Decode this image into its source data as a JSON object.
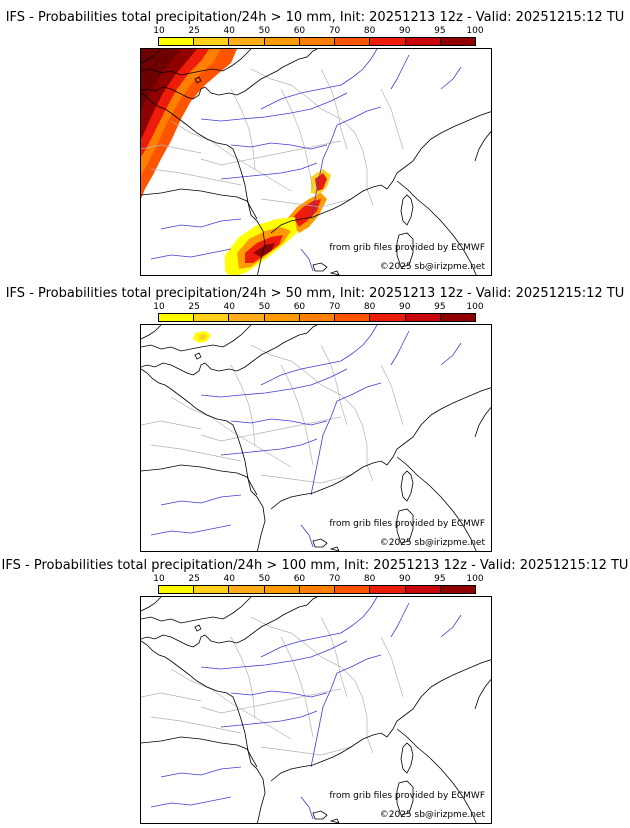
{
  "legend_ticks": [
    "10",
    "25",
    "40",
    "50",
    "60",
    "70",
    "80",
    "90",
    "95",
    "100"
  ],
  "legend_colors": [
    "#ffff00",
    "#ffd11a",
    "#ffae1a",
    "#ff9a00",
    "#ff8000",
    "#ff5400",
    "#ee1c0a",
    "#c8070a",
    "#8f0000",
    "#6e0000"
  ],
  "map_colors": {
    "coast": "#000000",
    "rivers": "#3f3fd4",
    "borders": "#b4b4b4"
  },
  "panels": [
    {
      "title": "IFS - Probabilities total precipitation/24h > 10 mm, Init: 20251213 12z - Valid: 20251215:12 TU",
      "credit_grib": "from grib files provided by ECMWF",
      "credit_copy": "©2025 sb@irizpme.net",
      "prob_areas": [
        "atlantic-northwest",
        "southern-alps",
        "gulf-of-lion"
      ]
    },
    {
      "title": "IFS - Probabilities total precipitation/24h > 50 mm, Init: 20251213 12z - Valid: 20251215:12 TU",
      "credit_grib": "from grib files provided by ECMWF",
      "credit_copy": "©2025 sb@irizpme.net",
      "prob_areas": [
        "cornwall-speck"
      ]
    },
    {
      "title": "IFS - Probabilities total precipitation/24h > 100 mm, Init: 20251213 12z - Valid: 20251215:12 TU",
      "credit_grib": "from grib files provided by ECMWF",
      "credit_copy": "©2025 sb@irizpme.net",
      "prob_areas": []
    }
  ]
}
